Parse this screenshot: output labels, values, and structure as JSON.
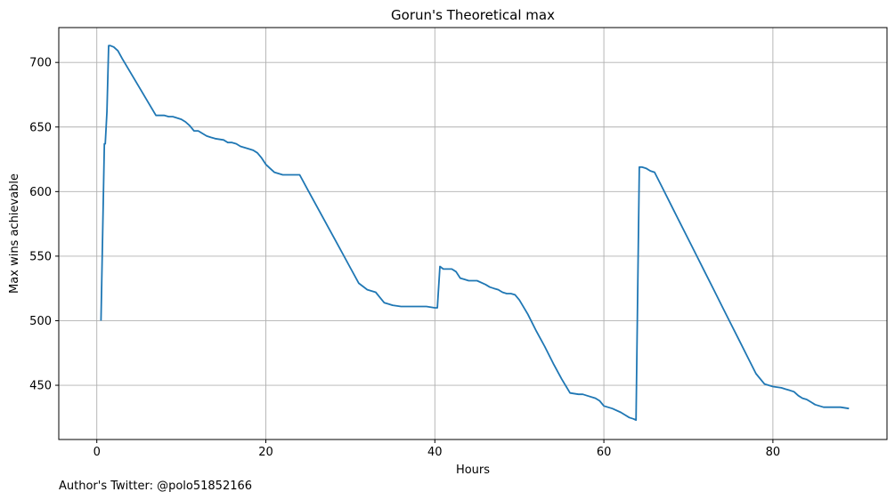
{
  "chart_data": {
    "type": "line",
    "title": "Gorun's Theoretical max",
    "xlabel": "Hours",
    "ylabel": "Max wins achievable",
    "xlim": [
      -4.5,
      93.5
    ],
    "ylim": [
      408,
      727
    ],
    "xticks": [
      0,
      20,
      40,
      60,
      80
    ],
    "yticks": [
      450,
      500,
      550,
      600,
      650,
      700
    ],
    "grid": true,
    "line_color": "#1f77b4",
    "series": [
      {
        "x": [
          0.5,
          0.9,
          1.0,
          1.2,
          1.4,
          1.6,
          2.0,
          2.5,
          3.0,
          4.0,
          5.0,
          6.0,
          7.0,
          8.0,
          8.5,
          9.0,
          9.5,
          10.0,
          10.5,
          11.0,
          11.5,
          12.0,
          12.5,
          13.0,
          13.5,
          14.0,
          15.0,
          15.5,
          16.0,
          16.5,
          17.0,
          18.0,
          18.5,
          19.0,
          19.5,
          20.0,
          20.5,
          21.0,
          22.0,
          23.0,
          24.0,
          25.0,
          26.0,
          27.0,
          28.0,
          29.0,
          30.0,
          31.0,
          32.0,
          33.0,
          33.5,
          34.0,
          34.5,
          35.0,
          36.0,
          37.0,
          38.0,
          39.0,
          40.0,
          40.3,
          40.6,
          41.0,
          42.0,
          42.5,
          43.0,
          43.5,
          44.0,
          45.0,
          46.0,
          46.5,
          47.0,
          47.5,
          48.0,
          48.5,
          49.0,
          49.5,
          50.0,
          51.0,
          52.0,
          53.0,
          54.0,
          55.0,
          56.0,
          57.0,
          57.5,
          58.0,
          59.0,
          59.5,
          60.0,
          61.0,
          62.0,
          62.5,
          63.0,
          63.5,
          63.8,
          64.2,
          64.5,
          65.0,
          65.5,
          66.0,
          67.0,
          68.0,
          69.0,
          70.0,
          71.0,
          72.0,
          73.0,
          74.0,
          75.0,
          76.0,
          77.0,
          78.0,
          79.0,
          80.0,
          81.0,
          81.5,
          82.0,
          82.5,
          83.0,
          83.5,
          84.0,
          84.5,
          85.0,
          86.0,
          86.5,
          87.0,
          88.0,
          89.0
        ],
        "y": [
          500,
          637,
          637,
          662,
          713,
          713,
          712,
          709,
          703,
          692,
          681,
          670,
          659,
          659,
          658,
          658,
          657,
          656,
          654,
          651,
          647,
          647,
          645,
          643,
          642,
          641,
          640,
          638,
          638,
          637,
          635,
          633,
          632,
          630,
          626,
          621,
          618,
          615,
          613,
          613,
          613,
          601,
          589,
          577,
          565,
          553,
          541,
          529,
          524,
          522,
          518,
          514,
          513,
          512,
          511,
          511,
          511,
          511,
          510,
          510,
          542,
          540,
          540,
          538,
          533,
          532,
          531,
          531,
          528,
          526,
          525,
          524,
          522,
          521,
          521,
          520,
          516,
          505,
          492,
          480,
          467,
          455,
          444,
          443,
          443,
          442,
          440,
          438,
          434,
          432,
          429,
          427,
          425,
          424,
          423,
          619,
          619,
          618,
          616,
          615,
          602,
          589,
          576,
          563,
          550,
          537,
          524,
          511,
          498,
          485,
          472,
          459,
          451,
          449,
          448,
          447,
          446,
          445,
          442,
          440,
          439,
          437,
          435,
          433,
          433,
          433,
          433,
          432
        ]
      }
    ]
  },
  "footer": {
    "author": "Author's Twitter: @polo51852166"
  }
}
